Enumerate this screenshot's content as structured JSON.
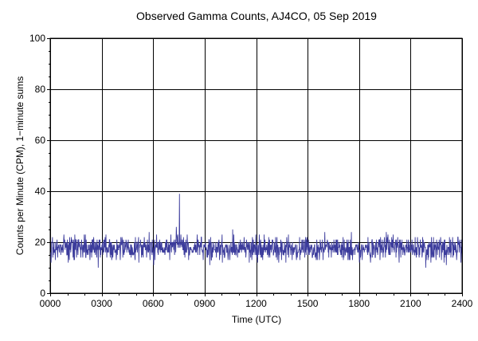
{
  "chart_data": {
    "type": "line",
    "title": "Observed Gamma Counts, AJ4CO, 05 Sep 2019",
    "xlabel": "Time (UTC)",
    "ylabel": "Counts per Minute (CPM), 1−minute sums",
    "xlim": [
      0,
      1440
    ],
    "ylim": [
      0,
      100
    ],
    "x_ticks": [
      {
        "value": 0,
        "label": "0000"
      },
      {
        "value": 180,
        "label": "0300"
      },
      {
        "value": 360,
        "label": "0600"
      },
      {
        "value": 540,
        "label": "0900"
      },
      {
        "value": 720,
        "label": "1200"
      },
      {
        "value": 900,
        "label": "1500"
      },
      {
        "value": 1080,
        "label": "1800"
      },
      {
        "value": 1260,
        "label": "2100"
      },
      {
        "value": 1440,
        "label": "2400"
      }
    ],
    "y_ticks": [
      {
        "value": 0,
        "label": "0"
      },
      {
        "value": 20,
        "label": "20"
      },
      {
        "value": 40,
        "label": "40"
      },
      {
        "value": 60,
        "label": "60"
      },
      {
        "value": 80,
        "label": "80"
      },
      {
        "value": 100,
        "label": "100"
      }
    ],
    "grid": true,
    "series": [
      {
        "color": "#3c3c9c",
        "summary": {
          "mean_cpm": 17.5,
          "min_cpm": 5,
          "max_cpm": 39,
          "max_at_minute": 452
        },
        "sampled_values": [
          {
            "x": 0,
            "y": 16
          },
          {
            "x": 30,
            "y": 19
          },
          {
            "x": 60,
            "y": 17
          },
          {
            "x": 90,
            "y": 21
          },
          {
            "x": 120,
            "y": 15
          },
          {
            "x": 150,
            "y": 18
          },
          {
            "x": 180,
            "y": 16
          },
          {
            "x": 210,
            "y": 20
          },
          {
            "x": 240,
            "y": 14
          },
          {
            "x": 270,
            "y": 19
          },
          {
            "x": 300,
            "y": 17
          },
          {
            "x": 330,
            "y": 22
          },
          {
            "x": 360,
            "y": 16
          },
          {
            "x": 390,
            "y": 18
          },
          {
            "x": 420,
            "y": 20
          },
          {
            "x": 452,
            "y": 39
          },
          {
            "x": 480,
            "y": 17
          },
          {
            "x": 510,
            "y": 19
          },
          {
            "x": 540,
            "y": 16
          },
          {
            "x": 570,
            "y": 18
          },
          {
            "x": 600,
            "y": 21
          },
          {
            "x": 630,
            "y": 15
          },
          {
            "x": 660,
            "y": 19
          },
          {
            "x": 690,
            "y": 17
          },
          {
            "x": 720,
            "y": 18
          },
          {
            "x": 750,
            "y": 16
          },
          {
            "x": 780,
            "y": 20
          },
          {
            "x": 810,
            "y": 14
          },
          {
            "x": 840,
            "y": 18
          },
          {
            "x": 870,
            "y": 17
          },
          {
            "x": 900,
            "y": 19
          },
          {
            "x": 930,
            "y": 16
          },
          {
            "x": 960,
            "y": 21
          },
          {
            "x": 990,
            "y": 18
          },
          {
            "x": 1020,
            "y": 17
          },
          {
            "x": 1050,
            "y": 20
          },
          {
            "x": 1080,
            "y": 16
          },
          {
            "x": 1110,
            "y": 19
          },
          {
            "x": 1140,
            "y": 18
          },
          {
            "x": 1170,
            "y": 17
          },
          {
            "x": 1200,
            "y": 21
          },
          {
            "x": 1230,
            "y": 15
          },
          {
            "x": 1260,
            "y": 19
          },
          {
            "x": 1290,
            "y": 18
          },
          {
            "x": 1320,
            "y": 17
          },
          {
            "x": 1350,
            "y": 20
          },
          {
            "x": 1380,
            "y": 16
          },
          {
            "x": 1410,
            "y": 19
          },
          {
            "x": 1440,
            "y": 18
          }
        ]
      }
    ]
  }
}
